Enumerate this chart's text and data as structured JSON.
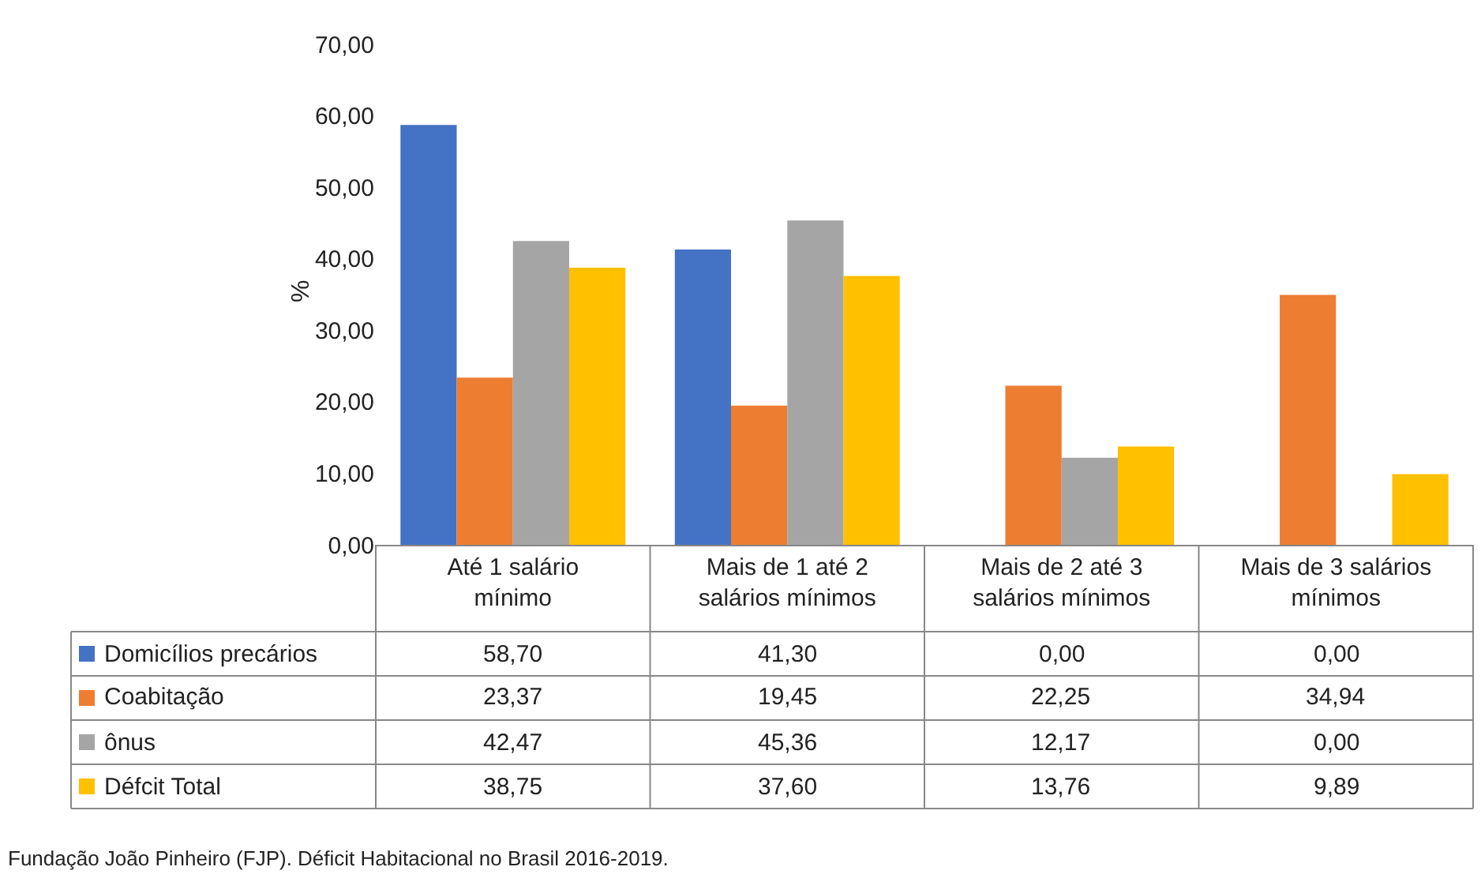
{
  "chart_data": {
    "type": "bar",
    "ylabel": "%",
    "categories": [
      "Até 1 salário mínimo",
      "Mais de 1 até 2 salários mínimos",
      "Mais de 2 até 3 salários mínimos",
      "Mais de 3 salários mínimos"
    ],
    "series": [
      {
        "name": "Domicílios precários",
        "color": "#4472c4",
        "values": [
          58.7,
          41.3,
          0.0,
          0.0
        ],
        "value_labels": [
          "58,70",
          "41,30",
          "0,00",
          "0,00"
        ]
      },
      {
        "name": "Coabitação",
        "color": "#ed7d31",
        "values": [
          23.37,
          19.45,
          22.25,
          34.94
        ],
        "value_labels": [
          "23,37",
          "19,45",
          "22,25",
          "34,94"
        ]
      },
      {
        "name": "ônus",
        "color": "#a5a5a5",
        "values": [
          42.47,
          45.36,
          12.17,
          0.0
        ],
        "value_labels": [
          "42,47",
          "45,36",
          "12,17",
          "0,00"
        ]
      },
      {
        "name": "Défcit Total",
        "color": "#ffc000",
        "values": [
          38.75,
          37.6,
          13.76,
          9.89
        ],
        "value_labels": [
          "38,75",
          "37,60",
          "13,76",
          "9,89"
        ]
      }
    ],
    "ylim": [
      0,
      70
    ],
    "yticks": [
      {
        "value": 0,
        "label": "0,00"
      },
      {
        "value": 10,
        "label": "10,00"
      },
      {
        "value": 20,
        "label": "20,00"
      },
      {
        "value": 30,
        "label": "30,00"
      },
      {
        "value": 40,
        "label": "40,00"
      },
      {
        "value": 50,
        "label": "50,00"
      },
      {
        "value": 60,
        "label": "60,00"
      },
      {
        "value": 70,
        "label": "70,00"
      }
    ],
    "grid": false,
    "legend": "bottom left",
    "annotations": [
      "Fundação João Pinheiro (FJP). Déficit Habitacional no Brasil 2016-2019."
    ]
  }
}
